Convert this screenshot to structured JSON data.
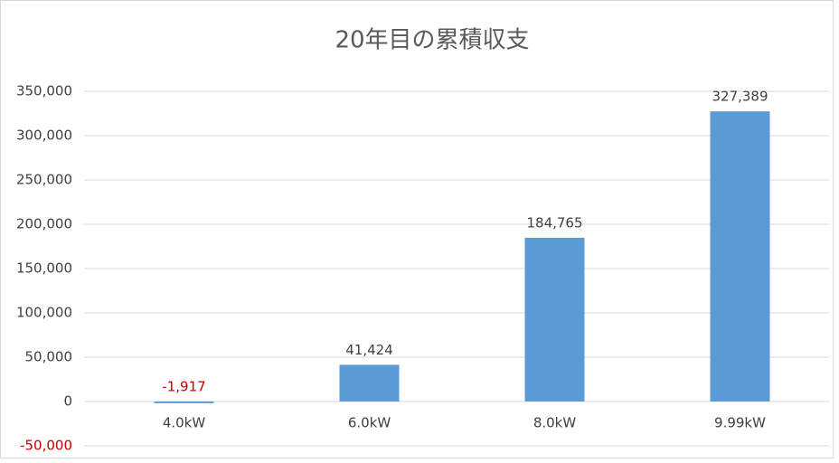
{
  "chart_data": {
    "type": "bar",
    "title": "20年目の累積収支",
    "categories": [
      "4.0kW",
      "6.0kW",
      "8.0kW",
      "9.99kW"
    ],
    "values": [
      -1917,
      41424,
      184765,
      327389
    ],
    "value_labels": [
      "-1,917",
      "41,424",
      "184,765",
      "327,389"
    ],
    "color": "#5b9bd5",
    "negative_color": "#c00000",
    "ylim": [
      -50000,
      350000
    ],
    "yticks": [
      {
        "value": -50000,
        "label": "-50,000"
      },
      0,
      {
        "value": 50000,
        "label": "50,000"
      },
      {
        "value": 100000,
        "label": "100,000"
      },
      {
        "value": 150000,
        "label": "150,000"
      },
      {
        "value": 200000,
        "label": "200,000"
      },
      {
        "value": 250000,
        "label": "250,000"
      },
      {
        "value": 300000,
        "label": "300,000"
      },
      {
        "value": 350000,
        "label": "350,000"
      }
    ],
    "grid": true
  }
}
